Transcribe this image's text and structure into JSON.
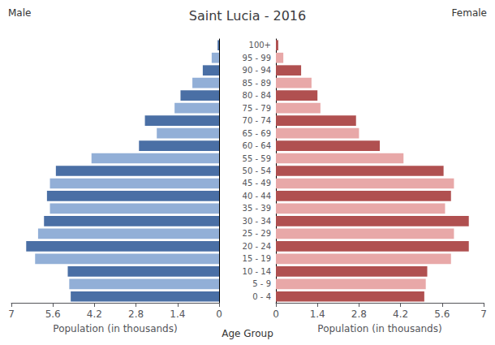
{
  "chart_data": {
    "type": "bar",
    "orientation": "horizontal",
    "title": "Saint Lucia - 2016",
    "ylabel": "Age Group",
    "categories": [
      "0 - 4",
      "5 - 9",
      "10 - 14",
      "15 - 19",
      "20 - 24",
      "25 - 29",
      "30 - 34",
      "35 - 39",
      "40 - 44",
      "45 - 49",
      "50 - 54",
      "55 - 59",
      "60 - 64",
      "65 - 69",
      "70 - 74",
      "75 - 79",
      "80 - 84",
      "85 - 89",
      "90 - 94",
      "95 - 99",
      "100+"
    ],
    "series": [
      {
        "name": "Male",
        "xlabel": "Population (in thousands)",
        "colors": [
          "#4a6fa5",
          "#92afd7",
          "#4a6fa5",
          "#92afd7",
          "#4a6fa5",
          "#92afd7",
          "#4a6fa5",
          "#92afd7",
          "#4a6fa5",
          "#92afd7",
          "#4a6fa5",
          "#92afd7",
          "#4a6fa5",
          "#92afd7",
          "#4a6fa5",
          "#92afd7",
          "#4a6fa5",
          "#92afd7",
          "#4a6fa5",
          "#92afd7",
          "#4a6fa5"
        ],
        "values": [
          5.0,
          5.05,
          5.1,
          6.2,
          6.5,
          6.1,
          5.9,
          5.7,
          5.8,
          5.7,
          5.5,
          4.3,
          2.7,
          2.1,
          2.5,
          1.5,
          1.3,
          0.9,
          0.55,
          0.25,
          0.05
        ]
      },
      {
        "name": "Female",
        "xlabel": "Population (in thousands)",
        "colors": [
          "#b05050",
          "#e8a8a8",
          "#b05050",
          "#e8a8a8",
          "#b05050",
          "#e8a8a8",
          "#b05050",
          "#e8a8a8",
          "#b05050",
          "#e8a8a8",
          "#b05050",
          "#e8a8a8",
          "#b05050",
          "#e8a8a8",
          "#b05050",
          "#e8a8a8",
          "#b05050",
          "#e8a8a8",
          "#b05050",
          "#e8a8a8",
          "#b05050"
        ],
        "values": [
          5.0,
          5.05,
          5.1,
          5.9,
          6.5,
          6.0,
          6.5,
          5.7,
          5.9,
          6.0,
          5.65,
          4.3,
          3.5,
          2.8,
          2.7,
          1.5,
          1.4,
          1.2,
          0.85,
          0.25,
          0.08
        ]
      }
    ],
    "xlim": [
      0,
      7
    ],
    "xticks": [
      0,
      1.4,
      2.8,
      4.2,
      5.6,
      7
    ],
    "grid": false
  }
}
